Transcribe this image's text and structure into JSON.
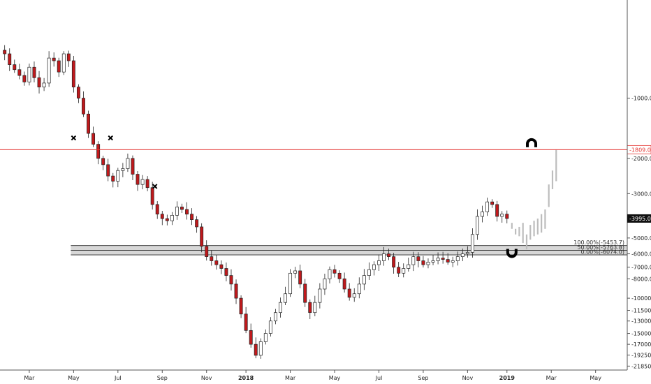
{
  "chart_data": {
    "type": "candlestick",
    "y_scale": "inverted-log",
    "ylim": [
      -22500,
      -350
    ],
    "y_ticks": [
      {
        "value": -1000,
        "label": "-1000.0"
      },
      {
        "value": -2000,
        "label": "-2000.0"
      },
      {
        "value": -3000,
        "label": "-3000.0"
      },
      {
        "value": -5000,
        "label": "-5000.0"
      },
      {
        "value": -6000,
        "label": "-6000.0"
      },
      {
        "value": -7000,
        "label": "-7000.0"
      },
      {
        "value": -8000,
        "label": "-8000.0"
      },
      {
        "value": -10000,
        "label": "-10000.0"
      },
      {
        "value": -11500,
        "label": "-11500.0"
      },
      {
        "value": -13000,
        "label": "-13000.0"
      },
      {
        "value": -15000,
        "label": "-15000.0"
      },
      {
        "value": -17000,
        "label": "-17000.0"
      },
      {
        "value": -19250,
        "label": "-19250.0"
      },
      {
        "value": -21850,
        "label": "-21850.0"
      }
    ],
    "x_ticks": [
      {
        "label": "Mar",
        "bold": false
      },
      {
        "label": "May",
        "bold": false
      },
      {
        "label": "Jul",
        "bold": false
      },
      {
        "label": "Sep",
        "bold": false
      },
      {
        "label": "Nov",
        "bold": false
      },
      {
        "label": "2018",
        "bold": true
      },
      {
        "label": "Mar",
        "bold": false
      },
      {
        "label": "May",
        "bold": false
      },
      {
        "label": "Jul",
        "bold": false
      },
      {
        "label": "Sep",
        "bold": false
      },
      {
        "label": "Nov",
        "bold": false
      },
      {
        "label": "2019",
        "bold": true
      },
      {
        "label": "Mar",
        "bold": false
      },
      {
        "label": "May",
        "bold": false
      }
    ],
    "x_tick_weeks": [
      8,
      17,
      26,
      35,
      44,
      52,
      61,
      70,
      79,
      88,
      97,
      105,
      114,
      123
    ],
    "horizontal_line": {
      "value": -1809,
      "label": "-1809.0",
      "color": "#e53935"
    },
    "last_price": {
      "value": -3995,
      "label": "-3995.0"
    },
    "fib_levels": [
      {
        "value": -5453.7,
        "label": "100.00%(-5453.7)"
      },
      {
        "value": -5763.8,
        "label": "50.00%(-5763.8)"
      },
      {
        "value": -6074.0,
        "label": "0.00%(-6074.0)"
      }
    ],
    "fib_week_range": [
      17,
      108
    ],
    "x_markers": [
      {
        "week": 17,
        "value": -1580
      },
      {
        "week": 24.5,
        "value": -1580
      },
      {
        "week": 33.5,
        "value": -2760
      }
    ],
    "magnets": [
      {
        "week": 110,
        "value": -1690,
        "orientation": "down"
      },
      {
        "week": 106,
        "value": -5900,
        "orientation": "up"
      }
    ],
    "week_start": 3,
    "closes": [
      -600,
      -680,
      -720,
      -770,
      -830,
      -700,
      -790,
      -880,
      -840,
      -630,
      -650,
      -740,
      -600,
      -650,
      -880,
      -1000,
      -1200,
      -1500,
      -1700,
      -2000,
      -2150,
      -2450,
      -2600,
      -2300,
      -2250,
      -2000,
      -2400,
      -2700,
      -2550,
      -2800,
      -3400,
      -3800,
      -4000,
      -4100,
      -3850,
      -3500,
      -3600,
      -3800,
      -4050,
      -4400,
      -5500,
      -6200,
      -6500,
      -6800,
      -7100,
      -7700,
      -8500,
      -10000,
      -12000,
      -14500,
      -17000,
      -19300,
      -16500,
      -15000,
      -13000,
      -11800,
      -10500,
      -9500,
      -7500,
      -7300,
      -8500,
      -10500,
      -11800,
      -10500,
      -9000,
      -8000,
      -7200,
      -7500,
      -8000,
      -9000,
      -9900,
      -9500,
      -8500,
      -7700,
      -7200,
      -6800,
      -6500,
      -6000,
      -6200,
      -7000,
      -7500,
      -7100,
      -6800,
      -6200,
      -6500,
      -6800,
      -6600,
      -6500,
      -6300,
      -6400,
      -6600,
      -6500,
      -6200,
      -6000,
      -5900,
      -4800,
      -3900,
      -3700,
      -3300,
      -3400,
      -3900,
      -3800,
      -3995
    ],
    "ghost_bars": [
      {
        "o": -4200,
        "c": -4500
      },
      {
        "o": -4500,
        "c": -4800
      },
      {
        "o": -4400,
        "c": -4900
      },
      {
        "o": -4200,
        "c": -5300
      },
      {
        "o": -4800,
        "c": -5700
      },
      {
        "o": -4300,
        "c": -5100
      },
      {
        "o": -4100,
        "c": -4900
      },
      {
        "o": -4000,
        "c": -4800
      },
      {
        "o": -3800,
        "c": -4700
      },
      {
        "o": -3600,
        "c": -4500
      },
      {
        "o": -2700,
        "c": -3500
      },
      {
        "o": -2300,
        "c": -2850
      },
      {
        "o": -1809,
        "c": -2600
      }
    ]
  }
}
